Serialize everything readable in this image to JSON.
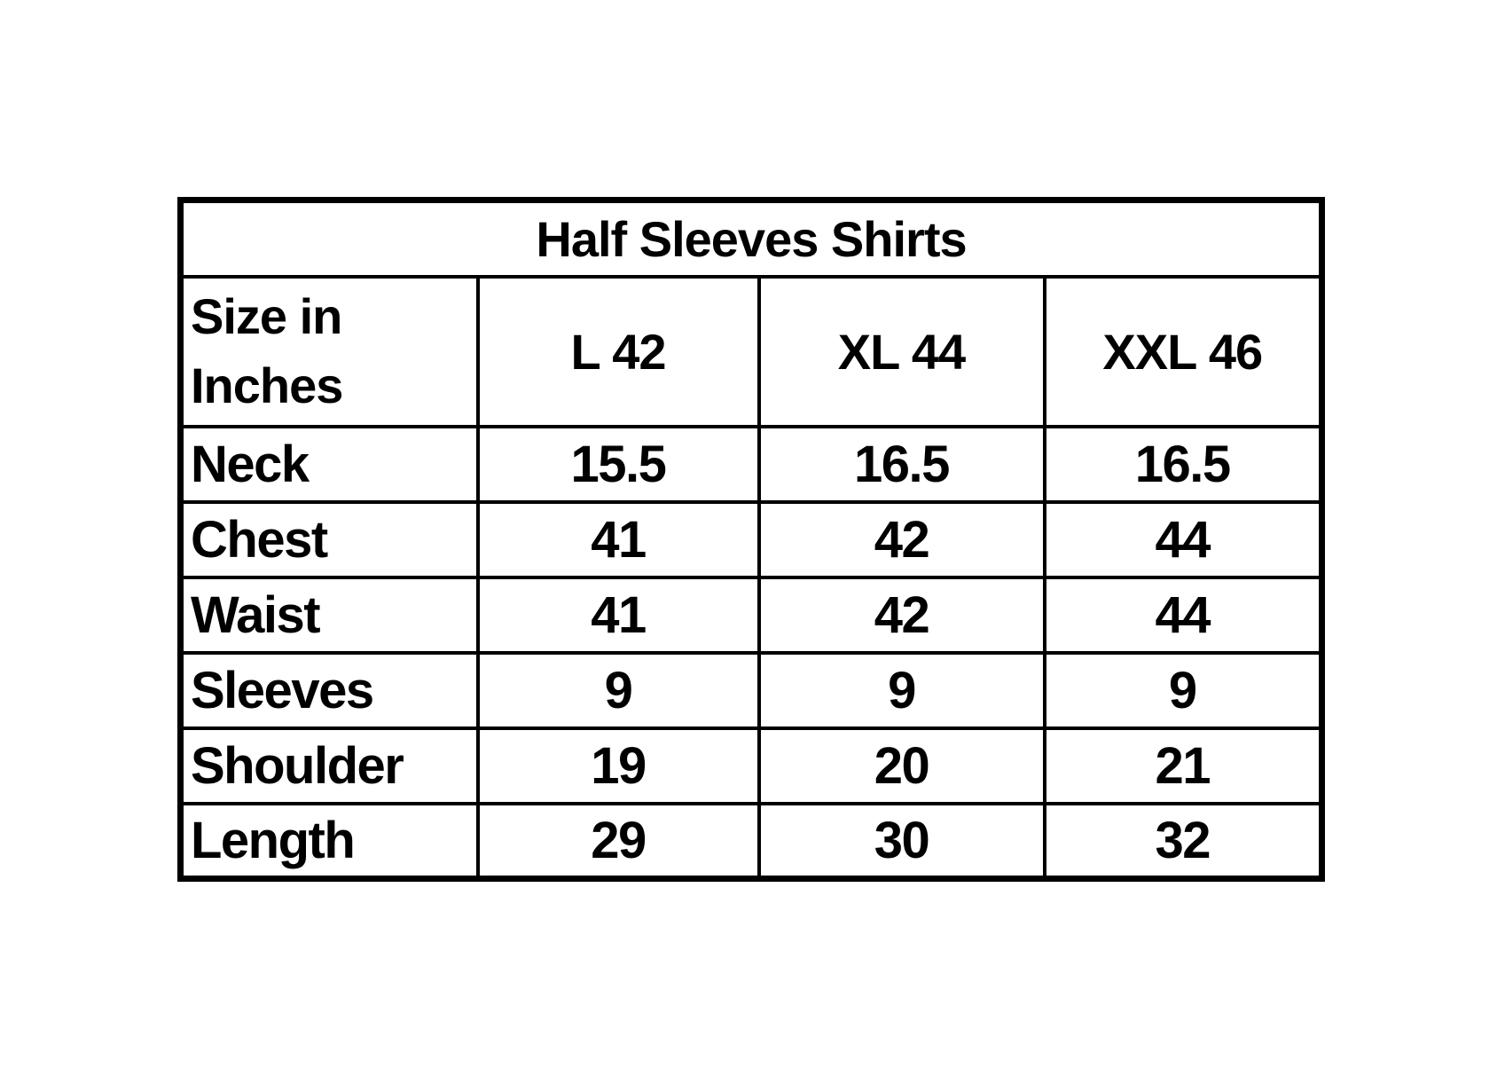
{
  "table": {
    "title": "Half Sleeves Shirts",
    "header": {
      "label": "Size in Inches",
      "columns": [
        "L 42",
        "XL 44",
        "XXL 46"
      ]
    },
    "rows": [
      {
        "label": "Neck",
        "values": [
          "15.5",
          "16.5",
          "16.5"
        ]
      },
      {
        "label": "Chest",
        "values": [
          "41",
          "42",
          "44"
        ]
      },
      {
        "label": "Waist",
        "values": [
          "41",
          "42",
          "44"
        ]
      },
      {
        "label": "Sleeves",
        "values": [
          "9",
          "9",
          "9"
        ]
      },
      {
        "label": "Shoulder",
        "values": [
          "19",
          "20",
          "21"
        ]
      },
      {
        "label": "Length",
        "values": [
          "29",
          "30",
          "32"
        ]
      }
    ],
    "colors": {
      "border": "#000000",
      "text": "#000000",
      "background": "#ffffff"
    }
  },
  "chart_data": {
    "type": "table",
    "title": "Half Sleeves Shirts",
    "row_header": "Size in Inches",
    "columns": [
      "L 42",
      "XL 44",
      "XXL 46"
    ],
    "rows": [
      {
        "measure": "Neck",
        "values": [
          15.5,
          16.5,
          16.5
        ]
      },
      {
        "measure": "Chest",
        "values": [
          41,
          42,
          44
        ]
      },
      {
        "measure": "Waist",
        "values": [
          41,
          42,
          44
        ]
      },
      {
        "measure": "Sleeves",
        "values": [
          9,
          9,
          9
        ]
      },
      {
        "measure": "Shoulder",
        "values": [
          19,
          20,
          21
        ]
      },
      {
        "measure": "Length",
        "values": [
          29,
          30,
          32
        ]
      }
    ]
  }
}
